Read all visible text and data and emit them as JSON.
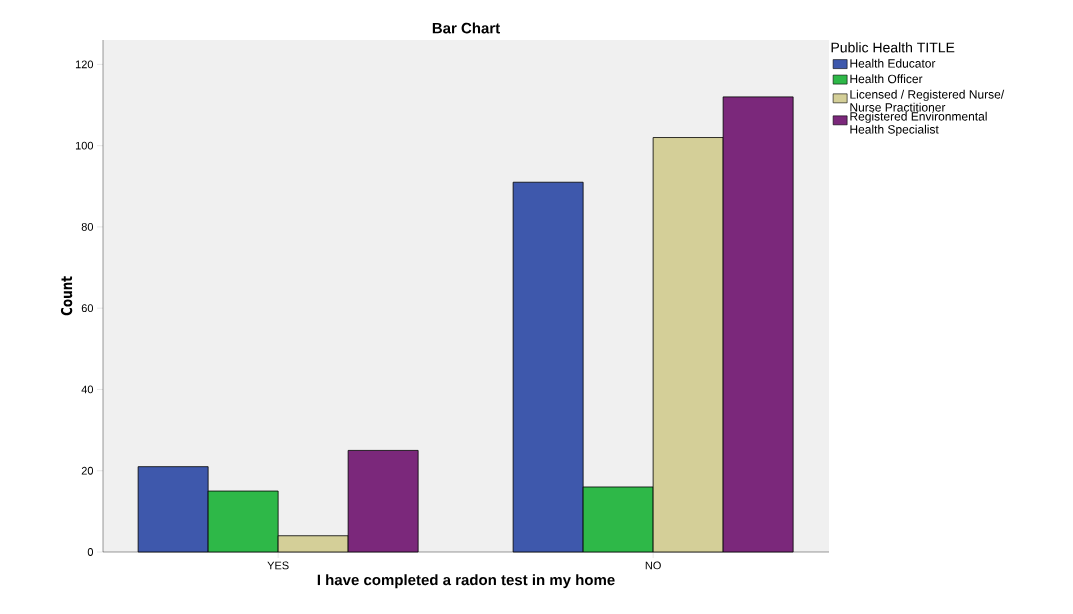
{
  "chart_data": {
    "type": "bar",
    "title": "Bar Chart",
    "xlabel": "I have completed a radon test in my home",
    "ylabel": "Count",
    "legend_title": "Public Health TITLE",
    "categories": [
      "YES",
      "NO"
    ],
    "series": [
      {
        "name": "Health Educator",
        "color": "#3e58ac",
        "values": [
          21,
          91
        ]
      },
      {
        "name": "Health Officer",
        "color": "#2eb848",
        "values": [
          15,
          16
        ]
      },
      {
        "name": "Licensed / Registered Nurse/ Nurse Practitioner",
        "color": "#d4cf98",
        "values": [
          4,
          102
        ]
      },
      {
        "name": "Registered Environmental Health Specialist",
        "color": "#7b287b",
        "values": [
          25,
          112
        ]
      }
    ],
    "ylim": [
      0,
      126
    ],
    "yticks": [
      0,
      20,
      40,
      60,
      80,
      100,
      120
    ],
    "grid": false,
    "legend": "right"
  }
}
